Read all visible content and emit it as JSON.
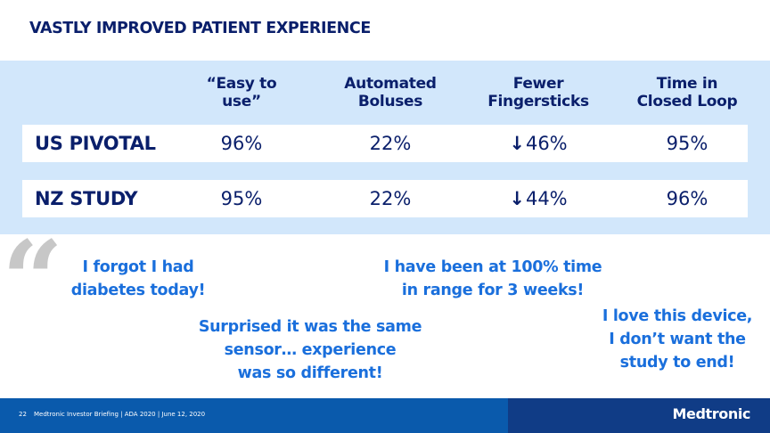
{
  "title": "VASTLY IMPROVED PATIENT EXPERIENCE",
  "table": {
    "headers": [
      {
        "line1": "“Easy to",
        "line2": "use”"
      },
      {
        "line1": "Automated",
        "line2": "Boluses"
      },
      {
        "line1": "Fewer",
        "line2": "Fingersticks"
      },
      {
        "line1": "Time in",
        "line2": "Closed Loop"
      }
    ],
    "rows": [
      {
        "label": "US PIVOTAL",
        "easy": "96%",
        "boluses": "22%",
        "fingersticks_arrow": "↓",
        "fingersticks": "46%",
        "closed_loop": "95%"
      },
      {
        "label": "NZ STUDY",
        "easy": "95%",
        "boluses": "22%",
        "fingersticks_arrow": "↓",
        "fingersticks": "44%",
        "closed_loop": "96%"
      }
    ]
  },
  "quote_mark": "“",
  "quotes": [
    {
      "line1": "I forgot I had",
      "line2": "diabetes today!"
    },
    {
      "line1": "I have been at 100% time",
      "line2": "in range for 3 weeks!"
    },
    {
      "line1": "Surprised it was the same",
      "line2": "sensor… experience",
      "line3": "was so different!"
    },
    {
      "line1": "I love this device,",
      "line2": "I don’t want the",
      "line3": "study to end!"
    }
  ],
  "footer": {
    "page_number": "22",
    "text": "Medtronic Investor Briefing | ADA 2020  |  June 12, 2020",
    "logo": "Medtronic"
  },
  "colors": {
    "navy": "#0a1f6b",
    "band": "#d2e7fb",
    "quote_blue": "#1a6fdc",
    "footer_blue": "#0a5aac",
    "footer_dark": "#103c86"
  }
}
